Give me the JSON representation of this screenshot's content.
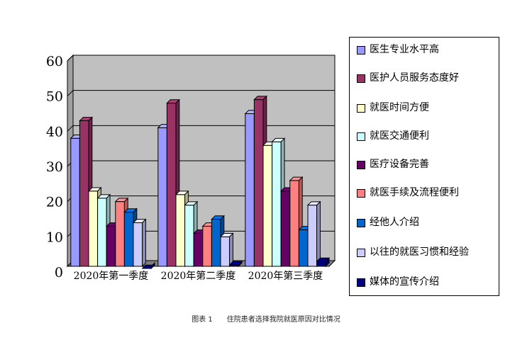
{
  "chart_data": {
    "type": "bar",
    "categories": [
      "2020年第一季度",
      "2020年第二季度",
      "2020年第三季度"
    ],
    "series": [
      {
        "name": "医生专业水平高",
        "values": [
          38,
          41,
          45
        ],
        "color": "#9999ff"
      },
      {
        "name": "医护人员服务态度好",
        "values": [
          43,
          48,
          49
        ],
        "color": "#993366"
      },
      {
        "name": "就医时间方便",
        "values": [
          23,
          22,
          36
        ],
        "color": "#ffffcc"
      },
      {
        "name": "就医交通便利",
        "values": [
          21,
          19,
          37
        ],
        "color": "#ccffff"
      },
      {
        "name": "医疗设备完善",
        "values": [
          13,
          11,
          23
        ],
        "color": "#660066"
      },
      {
        "name": "就医手续及流程便利",
        "values": [
          20,
          13,
          26
        ],
        "color": "#ff8080"
      },
      {
        "name": "经他人介绍",
        "values": [
          17,
          15,
          12
        ],
        "color": "#0066cc"
      },
      {
        "name": "以往的就医习惯和经验",
        "values": [
          14,
          10,
          19
        ],
        "color": "#ccccff"
      },
      {
        "name": "媒体的宣传介绍",
        "values": [
          1,
          2,
          3
        ],
        "color": "#000080"
      }
    ],
    "yticks": [
      "0",
      "10",
      "20",
      "30",
      "40",
      "50",
      "60"
    ],
    "ylim": [
      0,
      60
    ],
    "grid": true,
    "legend_position": "right",
    "plot_background": "#c0c0c0"
  },
  "caption": "图表 1　　住院患者选择我院就医原因对比情况"
}
